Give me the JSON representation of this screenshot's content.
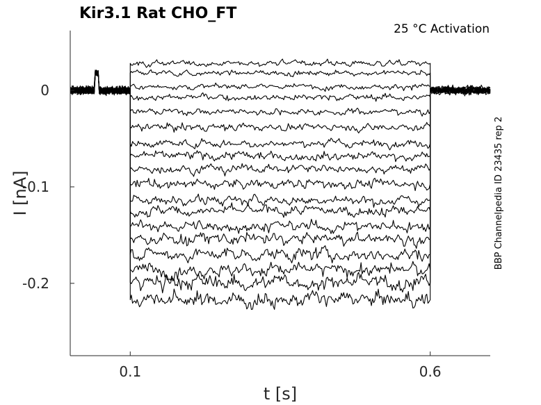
{
  "chart_data": {
    "type": "line",
    "title": "Kir3.1  Rat  CHO_FT",
    "annotation": "25 °C  Activation",
    "side_note": "BBP Channelpedia ID 23435 rep 2",
    "xlabel": "t [s]",
    "ylabel": "I [nA]",
    "xlim": [
      0.0,
      0.7
    ],
    "ylim": [
      -0.275,
      0.062
    ],
    "x_ticks": [
      {
        "value": 0.1,
        "label": "0.1"
      },
      {
        "value": 0.6,
        "label": "0.6"
      }
    ],
    "y_ticks": [
      {
        "value": 0.0,
        "label": "0"
      },
      {
        "value": -0.1,
        "label": "-0.1"
      },
      {
        "value": -0.2,
        "label": "-0.2"
      }
    ],
    "grid": false,
    "legend": "none",
    "baseline": {
      "level": 0.0,
      "noise": 0.004
    },
    "artifact": {
      "x_start": 0.041,
      "x_end": 0.048,
      "y": 0.018
    },
    "step": {
      "x_start": 0.1,
      "x_end": 0.6
    },
    "series": [
      {
        "step_level": 0.028,
        "noise": 0.003
      },
      {
        "step_level": 0.018,
        "noise": 0.003
      },
      {
        "step_level": 0.004,
        "noise": 0.003
      },
      {
        "step_level": -0.007,
        "noise": 0.0035
      },
      {
        "step_level": -0.022,
        "noise": 0.0035
      },
      {
        "step_level": -0.038,
        "noise": 0.004
      },
      {
        "step_level": -0.055,
        "noise": 0.004
      },
      {
        "step_level": -0.068,
        "noise": 0.0045
      },
      {
        "step_level": -0.081,
        "noise": 0.0045
      },
      {
        "step_level": -0.097,
        "noise": 0.005
      },
      {
        "step_level": -0.114,
        "noise": 0.005
      },
      {
        "step_level": -0.125,
        "noise": 0.0055
      },
      {
        "step_level": -0.141,
        "noise": 0.006
      },
      {
        "step_level": -0.154,
        "noise": 0.0065
      },
      {
        "step_level": -0.17,
        "noise": 0.007
      },
      {
        "step_level": -0.186,
        "noise": 0.0075
      },
      {
        "step_level": -0.199,
        "noise": 0.008
      },
      {
        "step_level": -0.217,
        "noise": 0.0085
      }
    ]
  }
}
